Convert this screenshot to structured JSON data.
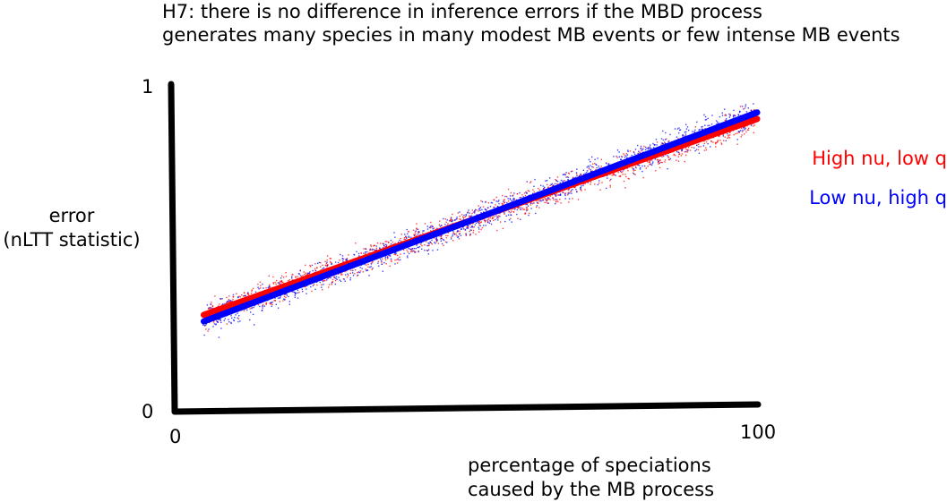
{
  "chart_data": {
    "type": "scatter",
    "title_lines": [
      "H7: there is no difference in inference errors if the MBD process",
      "generates many species in many modest MB events or few intense MB events"
    ],
    "ylabel_lines": [
      "error",
      "(nLTT statistic)"
    ],
    "xlabel_lines": [
      "percentage of speciations",
      "caused by the MB process"
    ],
    "x_ticks": [
      "0",
      "100"
    ],
    "y_ticks": [
      "0",
      "1"
    ],
    "xlim": [
      0,
      100
    ],
    "ylim": [
      0,
      1
    ],
    "series": [
      {
        "name": "High nu, low q",
        "color": "#ff0000",
        "trend": {
          "x": [
            5,
            100
          ],
          "y": [
            0.29,
            0.9
          ]
        }
      },
      {
        "name": "Low nu, high q",
        "color": "#0000ff",
        "trend": {
          "x": [
            5,
            100
          ],
          "y": [
            0.27,
            0.92
          ]
        }
      }
    ],
    "legend_position": "right",
    "grid": false
  }
}
